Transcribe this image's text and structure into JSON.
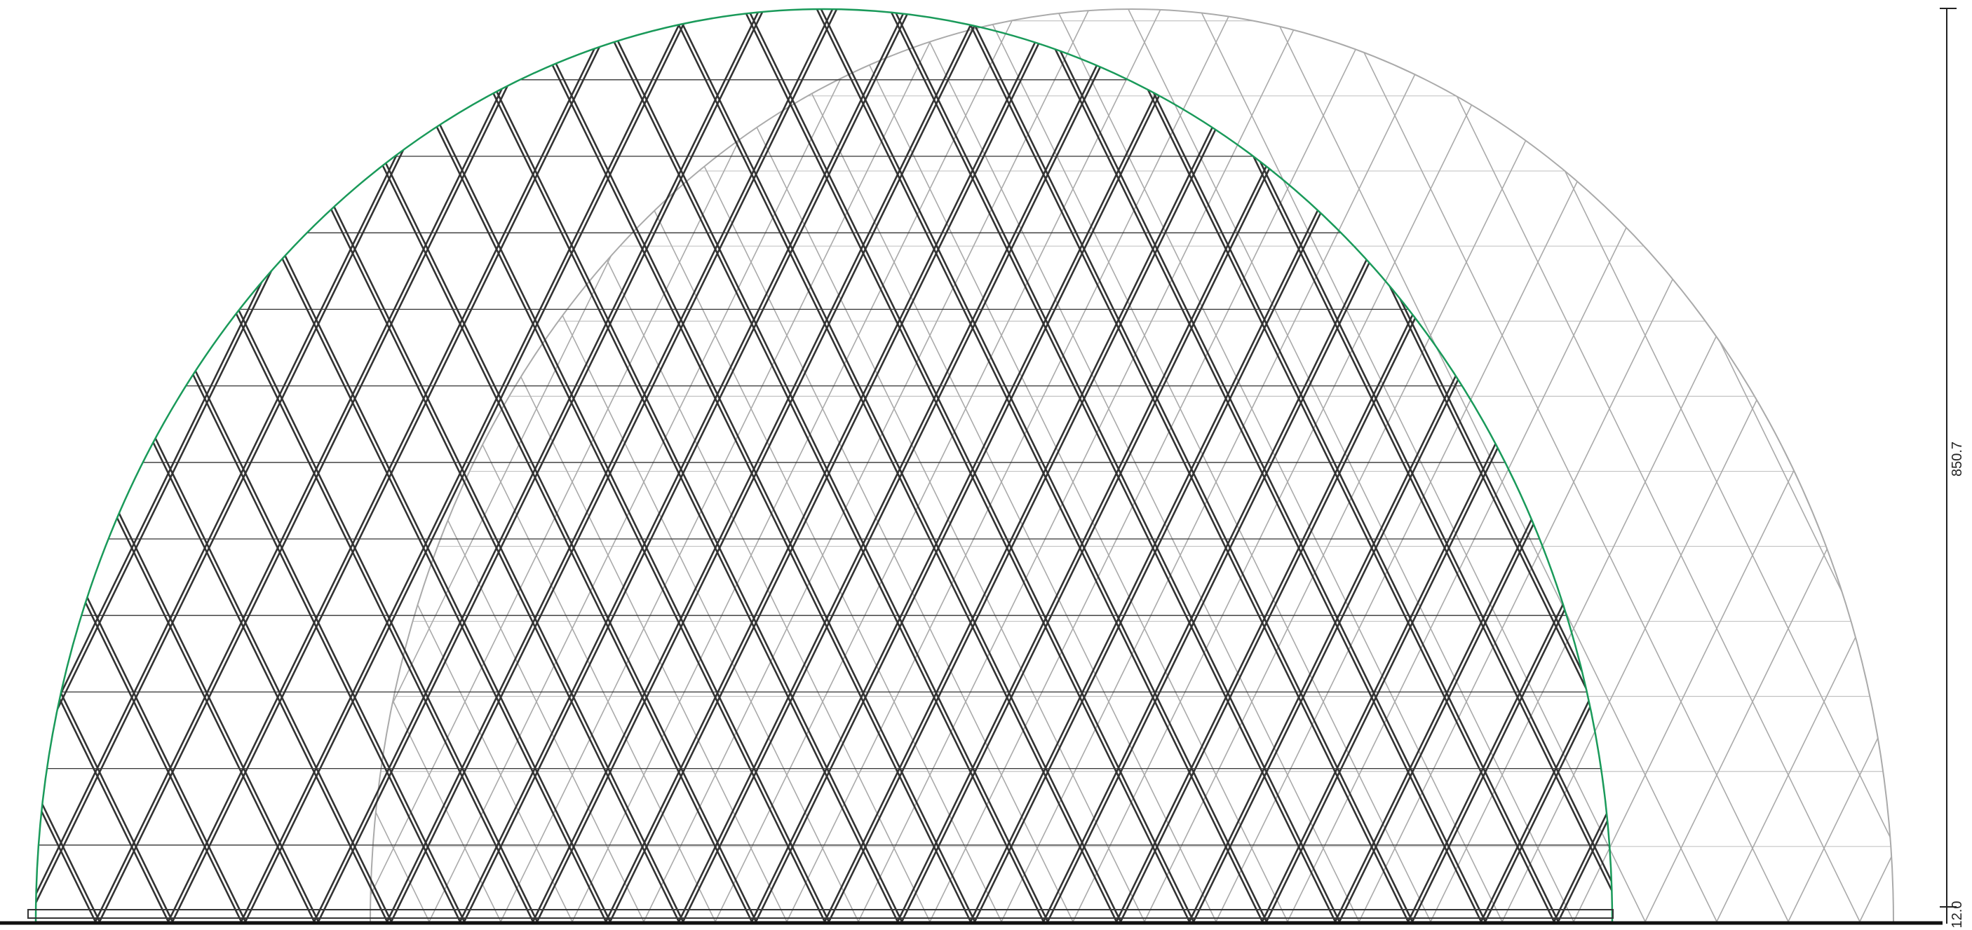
{
  "dimensions": {
    "height": "850.7",
    "base": "12.0"
  }
}
